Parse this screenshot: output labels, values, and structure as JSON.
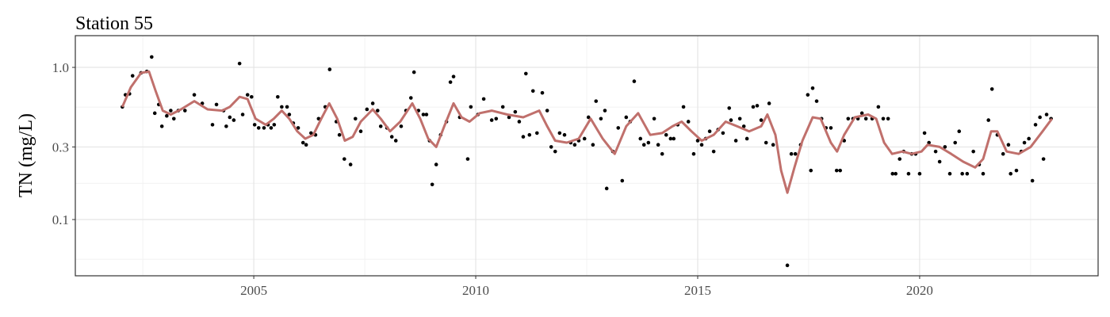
{
  "chart_data": {
    "type": "scatter",
    "title": "Station 55",
    "ylabel": "TN (mg/L)",
    "log_y": true,
    "grid": true,
    "xlim": [
      2000.98,
      2024.02
    ],
    "ylim": [
      0.0427,
      1.616
    ],
    "xticks": [
      2005,
      2010,
      2015,
      2020
    ],
    "yticks": [
      {
        "value": 1,
        "label": "1.0"
      },
      0.3,
      0.1
    ],
    "xminor": [
      2002.5,
      2007.5,
      2012.5,
      2017.5,
      2022.5
    ],
    "yminor": [
      0.0548,
      0.173,
      0.548
    ],
    "series": [
      {
        "type": "scatter",
        "color": "#000000",
        "x": [
          2002.04,
          2002.11,
          2002.2,
          2002.27,
          2002.46,
          2002.59,
          2002.7,
          2002.77,
          2002.86,
          2002.93,
          2003.04,
          2003.13,
          2003.2,
          2003.3,
          2003.45,
          2003.66,
          2003.84,
          2004.07,
          2004.16,
          2004.32,
          2004.38,
          2004.46,
          2004.55,
          2004.68,
          2004.75,
          2004.86,
          2004.95,
          2005.02,
          2005.11,
          2005.23,
          2005.32,
          2005.39,
          2005.46,
          2005.54,
          2005.63,
          2005.75,
          2005.8,
          2005.89,
          2006.0,
          2006.11,
          2006.18,
          2006.29,
          2006.39,
          2006.46,
          2006.61,
          2006.71,
          2006.86,
          2006.93,
          2007.04,
          2007.18,
          2007.29,
          2007.41,
          2007.55,
          2007.68,
          2007.79,
          2007.86,
          2008.0,
          2008.11,
          2008.2,
          2008.32,
          2008.43,
          2008.54,
          2008.61,
          2008.71,
          2008.82,
          2008.89,
          2008.96,
          2009.02,
          2009.11,
          2009.21,
          2009.34,
          2009.43,
          2009.5,
          2009.64,
          2009.82,
          2009.89,
          2010.05,
          2010.18,
          2010.36,
          2010.46,
          2010.61,
          2010.75,
          2010.89,
          2010.98,
          2011.07,
          2011.13,
          2011.21,
          2011.29,
          2011.38,
          2011.5,
          2011.61,
          2011.7,
          2011.79,
          2011.89,
          2012.0,
          2012.14,
          2012.23,
          2012.32,
          2012.45,
          2012.54,
          2012.64,
          2012.71,
          2012.82,
          2012.91,
          2012.95,
          2013.09,
          2013.21,
          2013.3,
          2013.39,
          2013.48,
          2013.57,
          2013.71,
          2013.79,
          2013.89,
          2014.02,
          2014.11,
          2014.2,
          2014.29,
          2014.39,
          2014.46,
          2014.55,
          2014.68,
          2014.79,
          2014.91,
          2015.0,
          2015.09,
          2015.18,
          2015.27,
          2015.36,
          2015.46,
          2015.57,
          2015.71,
          2015.75,
          2015.86,
          2015.95,
          2016.04,
          2016.11,
          2016.25,
          2016.34,
          2016.43,
          2016.54,
          2016.61,
          2016.7,
          2017.02,
          2017.11,
          2017.2,
          2017.32,
          2017.48,
          2017.55,
          2017.59,
          2017.68,
          2017.79,
          2017.89,
          2018.0,
          2018.13,
          2018.21,
          2018.3,
          2018.39,
          2018.5,
          2018.61,
          2018.7,
          2018.79,
          2018.93,
          2019.07,
          2019.18,
          2019.29,
          2019.39,
          2019.46,
          2019.55,
          2019.64,
          2019.75,
          2019.82,
          2019.91,
          2020.0,
          2020.11,
          2020.21,
          2020.36,
          2020.45,
          2020.57,
          2020.68,
          2020.8,
          2020.89,
          2020.96,
          2021.07,
          2021.21,
          2021.34,
          2021.43,
          2021.55,
          2021.63,
          2021.75,
          2021.88,
          2022.0,
          2022.05,
          2022.18,
          2022.29,
          2022.36,
          2022.46,
          2022.54,
          2022.61,
          2022.71,
          2022.79,
          2022.86,
          2022.96
        ],
        "values": [
          0.55,
          0.66,
          0.67,
          0.88,
          0.92,
          0.94,
          1.17,
          0.5,
          0.57,
          0.41,
          0.48,
          0.52,
          0.46,
          0.52,
          0.52,
          0.66,
          0.58,
          0.42,
          0.57,
          0.52,
          0.41,
          0.47,
          0.45,
          1.06,
          0.49,
          0.66,
          0.64,
          0.42,
          0.4,
          0.4,
          0.42,
          0.4,
          0.42,
          0.64,
          0.55,
          0.55,
          0.49,
          0.43,
          0.4,
          0.32,
          0.31,
          0.37,
          0.36,
          0.46,
          0.55,
          0.97,
          0.44,
          0.36,
          0.25,
          0.23,
          0.46,
          0.38,
          0.53,
          0.58,
          0.52,
          0.41,
          0.4,
          0.35,
          0.33,
          0.41,
          0.52,
          0.63,
          0.93,
          0.52,
          0.49,
          0.49,
          0.33,
          0.17,
          0.23,
          0.36,
          0.44,
          0.8,
          0.87,
          0.47,
          0.25,
          0.55,
          0.49,
          0.62,
          0.45,
          0.46,
          0.55,
          0.47,
          0.51,
          0.44,
          0.35,
          0.91,
          0.36,
          0.7,
          0.37,
          0.68,
          0.52,
          0.3,
          0.28,
          0.37,
          0.36,
          0.32,
          0.31,
          0.33,
          0.34,
          0.47,
          0.31,
          0.6,
          0.46,
          0.52,
          0.16,
          0.28,
          0.4,
          0.18,
          0.47,
          0.44,
          0.81,
          0.34,
          0.31,
          0.32,
          0.46,
          0.31,
          0.27,
          0.36,
          0.34,
          0.34,
          0.42,
          0.55,
          0.44,
          0.27,
          0.33,
          0.31,
          0.34,
          0.38,
          0.28,
          0.39,
          0.37,
          0.54,
          0.45,
          0.33,
          0.46,
          0.41,
          0.34,
          0.55,
          0.56,
          0.45,
          0.32,
          0.58,
          0.31,
          0.05,
          0.27,
          0.27,
          0.31,
          0.66,
          0.21,
          0.73,
          0.6,
          0.46,
          0.4,
          0.4,
          0.21,
          0.21,
          0.33,
          0.46,
          0.46,
          0.46,
          0.5,
          0.46,
          0.46,
          0.55,
          0.46,
          0.46,
          0.2,
          0.2,
          0.25,
          0.28,
          0.2,
          0.27,
          0.27,
          0.2,
          0.37,
          0.32,
          0.28,
          0.24,
          0.3,
          0.2,
          0.32,
          0.38,
          0.2,
          0.2,
          0.28,
          0.23,
          0.2,
          0.45,
          0.72,
          0.36,
          0.27,
          0.31,
          0.2,
          0.21,
          0.28,
          0.32,
          0.34,
          0.18,
          0.42,
          0.47,
          0.25,
          0.49,
          0.46
        ]
      },
      {
        "type": "line",
        "color": "#c0706c",
        "x": [
          2002.04,
          2002.23,
          2002.46,
          2002.64,
          2002.79,
          2002.95,
          2003.13,
          2003.36,
          2003.66,
          2003.96,
          2004.29,
          2004.46,
          2004.68,
          2004.86,
          2005.04,
          2005.27,
          2005.45,
          2005.63,
          2005.8,
          2005.98,
          2006.16,
          2006.34,
          2006.52,
          2006.7,
          2006.88,
          2007.05,
          2007.23,
          2007.41,
          2007.68,
          2007.86,
          2008.07,
          2008.3,
          2008.57,
          2008.75,
          2008.93,
          2009.11,
          2009.29,
          2009.5,
          2009.68,
          2009.86,
          2010.09,
          2010.36,
          2010.71,
          2011.07,
          2011.43,
          2011.61,
          2011.79,
          2012.05,
          2012.32,
          2012.59,
          2012.86,
          2013.13,
          2013.39,
          2013.66,
          2013.93,
          2014.2,
          2014.43,
          2014.64,
          2014.86,
          2015.09,
          2015.36,
          2015.63,
          2015.89,
          2016.16,
          2016.43,
          2016.57,
          2016.75,
          2016.88,
          2017.02,
          2017.18,
          2017.36,
          2017.59,
          2017.77,
          2018.0,
          2018.14,
          2018.3,
          2018.54,
          2018.84,
          2019.02,
          2019.2,
          2019.38,
          2019.61,
          2019.82,
          2020.04,
          2020.18,
          2020.45,
          2020.71,
          2020.98,
          2021.25,
          2021.43,
          2021.61,
          2021.75,
          2021.96,
          2022.23,
          2022.5,
          2022.77,
          2022.98
        ],
        "values": [
          0.55,
          0.74,
          0.92,
          0.94,
          0.7,
          0.52,
          0.49,
          0.53,
          0.6,
          0.53,
          0.52,
          0.55,
          0.64,
          0.62,
          0.46,
          0.42,
          0.46,
          0.52,
          0.46,
          0.38,
          0.34,
          0.36,
          0.46,
          0.58,
          0.46,
          0.33,
          0.35,
          0.44,
          0.53,
          0.46,
          0.38,
          0.44,
          0.58,
          0.46,
          0.34,
          0.3,
          0.41,
          0.58,
          0.47,
          0.44,
          0.5,
          0.52,
          0.49,
          0.47,
          0.52,
          0.41,
          0.33,
          0.32,
          0.34,
          0.46,
          0.34,
          0.27,
          0.41,
          0.5,
          0.36,
          0.37,
          0.41,
          0.44,
          0.38,
          0.33,
          0.36,
          0.44,
          0.41,
          0.38,
          0.41,
          0.49,
          0.36,
          0.21,
          0.15,
          0.22,
          0.33,
          0.47,
          0.46,
          0.32,
          0.28,
          0.36,
          0.47,
          0.49,
          0.46,
          0.32,
          0.27,
          0.28,
          0.27,
          0.28,
          0.31,
          0.3,
          0.27,
          0.24,
          0.22,
          0.25,
          0.38,
          0.38,
          0.28,
          0.27,
          0.3,
          0.38,
          0.46
        ]
      }
    ]
  }
}
